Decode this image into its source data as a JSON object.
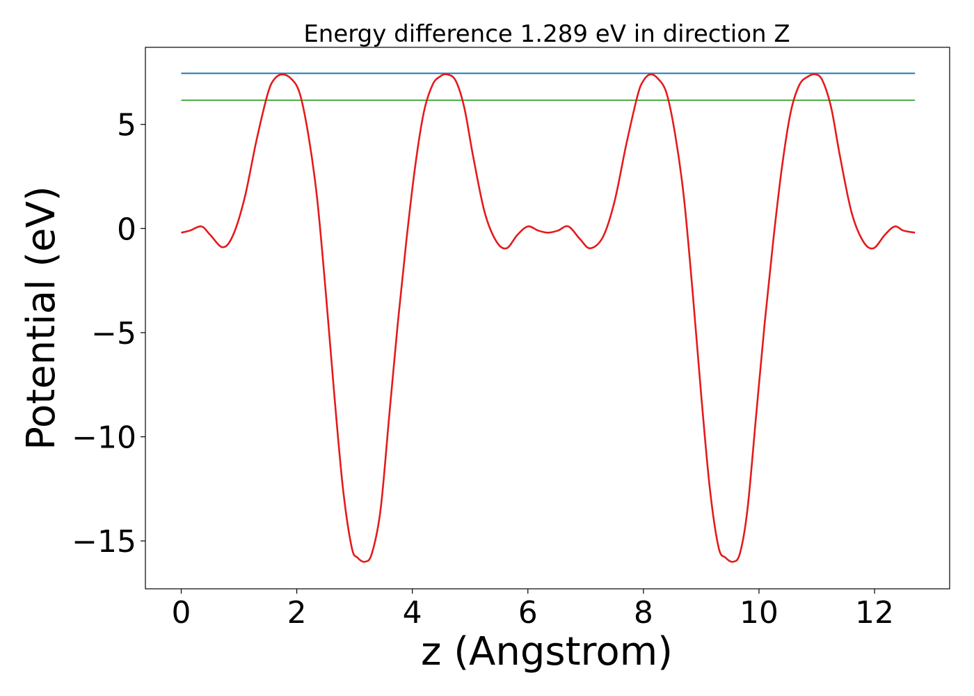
{
  "chart_data": {
    "type": "line",
    "title": "Energy difference 1.289 eV in direction Z",
    "xlabel": "z (Angstrom)",
    "ylabel": "Potential (eV)",
    "xlim": [
      -0.62,
      13.3
    ],
    "ylim": [
      -17.3,
      8.7
    ],
    "x_ticks": [
      0,
      2,
      4,
      6,
      8,
      10,
      12
    ],
    "y_ticks": [
      5,
      0,
      -5,
      -10,
      -15
    ],
    "y_tick_labels": [
      "5",
      "0",
      "−5",
      "−10",
      "−15"
    ],
    "grid": false,
    "legend": "none",
    "series": [
      {
        "color": "#e41a1c",
        "x": [
          0.0,
          0.15,
          0.35,
          0.5,
          0.72,
          0.9,
          1.1,
          1.3,
          1.5,
          1.62,
          1.75,
          1.9,
          2.05,
          2.2,
          2.35,
          2.5,
          2.65,
          2.8,
          2.95,
          3.05,
          3.18,
          3.3,
          3.45,
          3.6,
          3.75,
          3.9,
          4.05,
          4.2,
          4.35,
          4.48,
          4.6,
          4.75,
          4.9,
          5.05,
          5.25,
          5.45,
          5.63,
          5.82,
          6.0,
          6.18,
          6.35,
          6.52,
          6.7,
          6.9,
          7.08,
          7.3,
          7.5,
          7.7,
          7.9,
          8.0,
          8.12,
          8.25,
          8.4,
          8.55,
          8.7,
          8.85,
          9.0,
          9.15,
          9.3,
          9.42,
          9.55,
          9.67,
          9.8,
          9.95,
          10.1,
          10.25,
          10.4,
          10.55,
          10.7,
          10.85,
          10.98,
          11.1,
          11.25,
          11.4,
          11.6,
          11.8,
          11.98,
          12.18,
          12.35,
          12.5,
          12.7
        ],
        "y": [
          -0.2,
          -0.1,
          0.1,
          -0.3,
          -0.9,
          -0.3,
          1.5,
          4.2,
          6.5,
          7.2,
          7.4,
          7.2,
          6.5,
          4.5,
          1.5,
          -3.0,
          -8.0,
          -12.5,
          -15.3,
          -15.8,
          -16.0,
          -15.6,
          -13.5,
          -9.0,
          -4.5,
          -0.5,
          3.0,
          5.6,
          6.9,
          7.3,
          7.4,
          7.1,
          5.8,
          3.5,
          0.8,
          -0.6,
          -0.95,
          -0.3,
          0.1,
          -0.1,
          -0.2,
          -0.1,
          0.1,
          -0.5,
          -0.95,
          -0.4,
          1.3,
          4.0,
          6.4,
          7.1,
          7.4,
          7.2,
          6.5,
          4.5,
          1.5,
          -3.0,
          -8.0,
          -12.5,
          -15.3,
          -15.8,
          -16.0,
          -15.6,
          -13.5,
          -9.0,
          -4.5,
          -0.5,
          3.0,
          5.6,
          6.9,
          7.3,
          7.4,
          7.1,
          5.8,
          3.5,
          0.8,
          -0.6,
          -0.95,
          -0.3,
          0.1,
          -0.1,
          -0.2
        ]
      },
      {
        "color": "#1f77b4",
        "x": [
          0.0,
          12.7
        ],
        "y": [
          7.45,
          7.45
        ]
      },
      {
        "color": "#4daf4a",
        "x": [
          0.0,
          12.7
        ],
        "y": [
          6.16,
          6.16
        ]
      }
    ]
  }
}
